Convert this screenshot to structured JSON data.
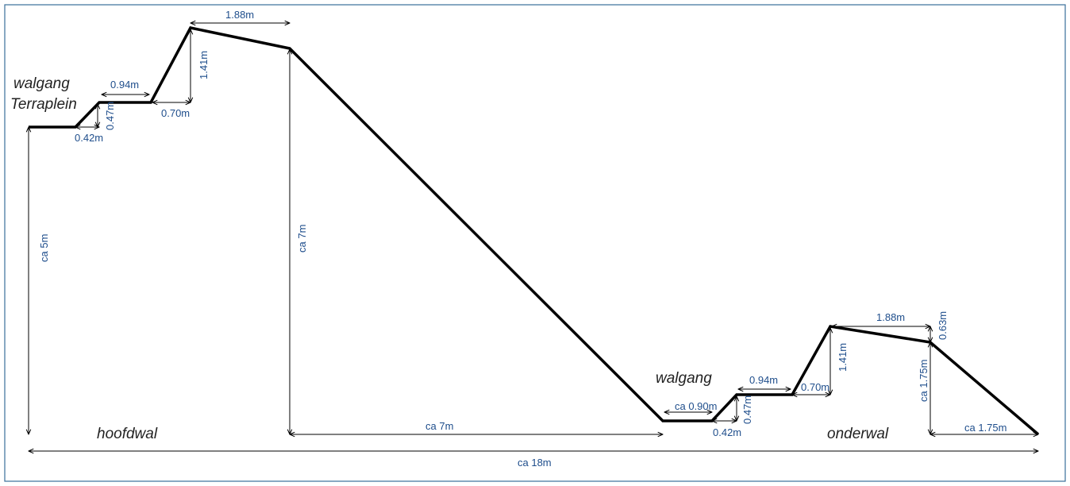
{
  "colors": {
    "profile": "#000000",
    "dimension_text": "#1f4e8c",
    "label_text": "#222222",
    "frame": "#3a6e9a"
  },
  "labels": {
    "walgang_terraplein_1": "walgang",
    "walgang_terraplein_2": "Terraplein",
    "hoofdwal": "hoofdwal",
    "walgang": "walgang",
    "onderwal": "onderwal"
  },
  "dimensions": {
    "left_0_42": "0.42m",
    "left_0_47": "0.47m",
    "left_0_94": "0.94m",
    "left_0_70": "0.70m",
    "left_1_41": "1.41m",
    "left_1_88": "1.88m",
    "ca_5m": "ca 5m",
    "ca_7m_vertical": "ca 7m",
    "ca_7m_horizontal": "ca 7m",
    "ca_0_90": "ca 0.90m",
    "right_0_42": "0.42m",
    "right_0_47": "0.47m",
    "right_0_94": "0.94m",
    "right_0_70": "0.70m",
    "right_1_41": "1.41m",
    "right_1_88": "1.88m",
    "right_0_63": "0.63m",
    "ca_1_75_vertical": "ca 1.75m",
    "ca_1_75_horizontal": "ca 1.75m",
    "ca_18m": "ca 18m"
  }
}
